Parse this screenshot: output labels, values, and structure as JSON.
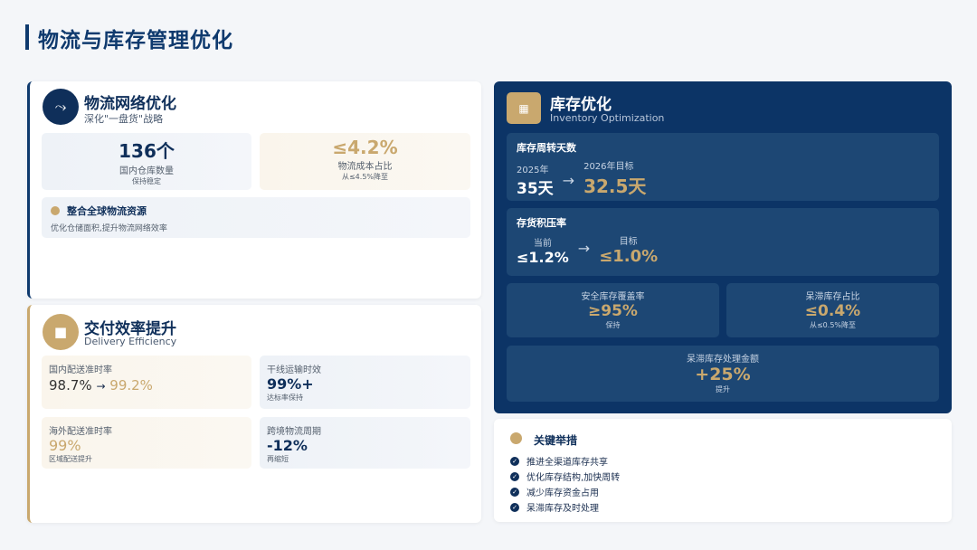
{
  "page_title": "物流与库存管理优化",
  "logistics": {
    "title": "物流网络优化",
    "subtitle": "深化\"一盘货\"战略",
    "stats": [
      {
        "value": "136个",
        "label": "国内仓库数量",
        "note": "保持稳定"
      },
      {
        "value": "≤4.2%",
        "label": "物流成本占比",
        "note": "从≤4.5%降至"
      }
    ],
    "highlight": {
      "title": "整合全球物流资源",
      "text": "优化仓储面积,提升物流网络效率"
    }
  },
  "delivery": {
    "title": "交付效率提升",
    "subtitle": "Delivery Efficiency",
    "items": [
      {
        "label": "国内配送准时率",
        "from": "98.7%",
        "arrow": "→",
        "to": "99.2%"
      },
      {
        "label": "干线运输时效",
        "value": "99%+",
        "note": "达标率保持"
      },
      {
        "label": "海外配送准时率",
        "value": "99%",
        "note": "区域配送提升"
      },
      {
        "label": "跨境物流周期",
        "value": "-12%",
        "note": "再缩短"
      }
    ]
  },
  "inventory": {
    "title": "库存优化",
    "subtitle": "Inventory Optimization",
    "turnover": {
      "label": "库存周转天数",
      "from_label": "2025年",
      "from": "35天",
      "to_label": "2026年目标",
      "to": "32.5天"
    },
    "backlog": {
      "label": "存货积压率",
      "from_label": "当前",
      "from": "≤1.2%",
      "to_label": "目标",
      "to": "≤1.0%"
    },
    "safety": {
      "label": "安全库存覆盖率",
      "value": "≥95%",
      "note": "保持"
    },
    "stagnant": {
      "label": "呆滞库存占比",
      "value": "≤0.4%",
      "note": "从≤0.5%降至"
    },
    "disposal": {
      "label": "呆滞库存处理金额",
      "value": "+25%",
      "note": "提升"
    }
  },
  "measures": {
    "title": "关键举措",
    "items": [
      "推进全渠道库存共享",
      "优化库存结构,加快周转",
      "减少库存资金占用",
      "呆滞库存及时处理"
    ]
  },
  "colors": {
    "navy": "#0f3a6e",
    "gold": "#c9a86e"
  }
}
